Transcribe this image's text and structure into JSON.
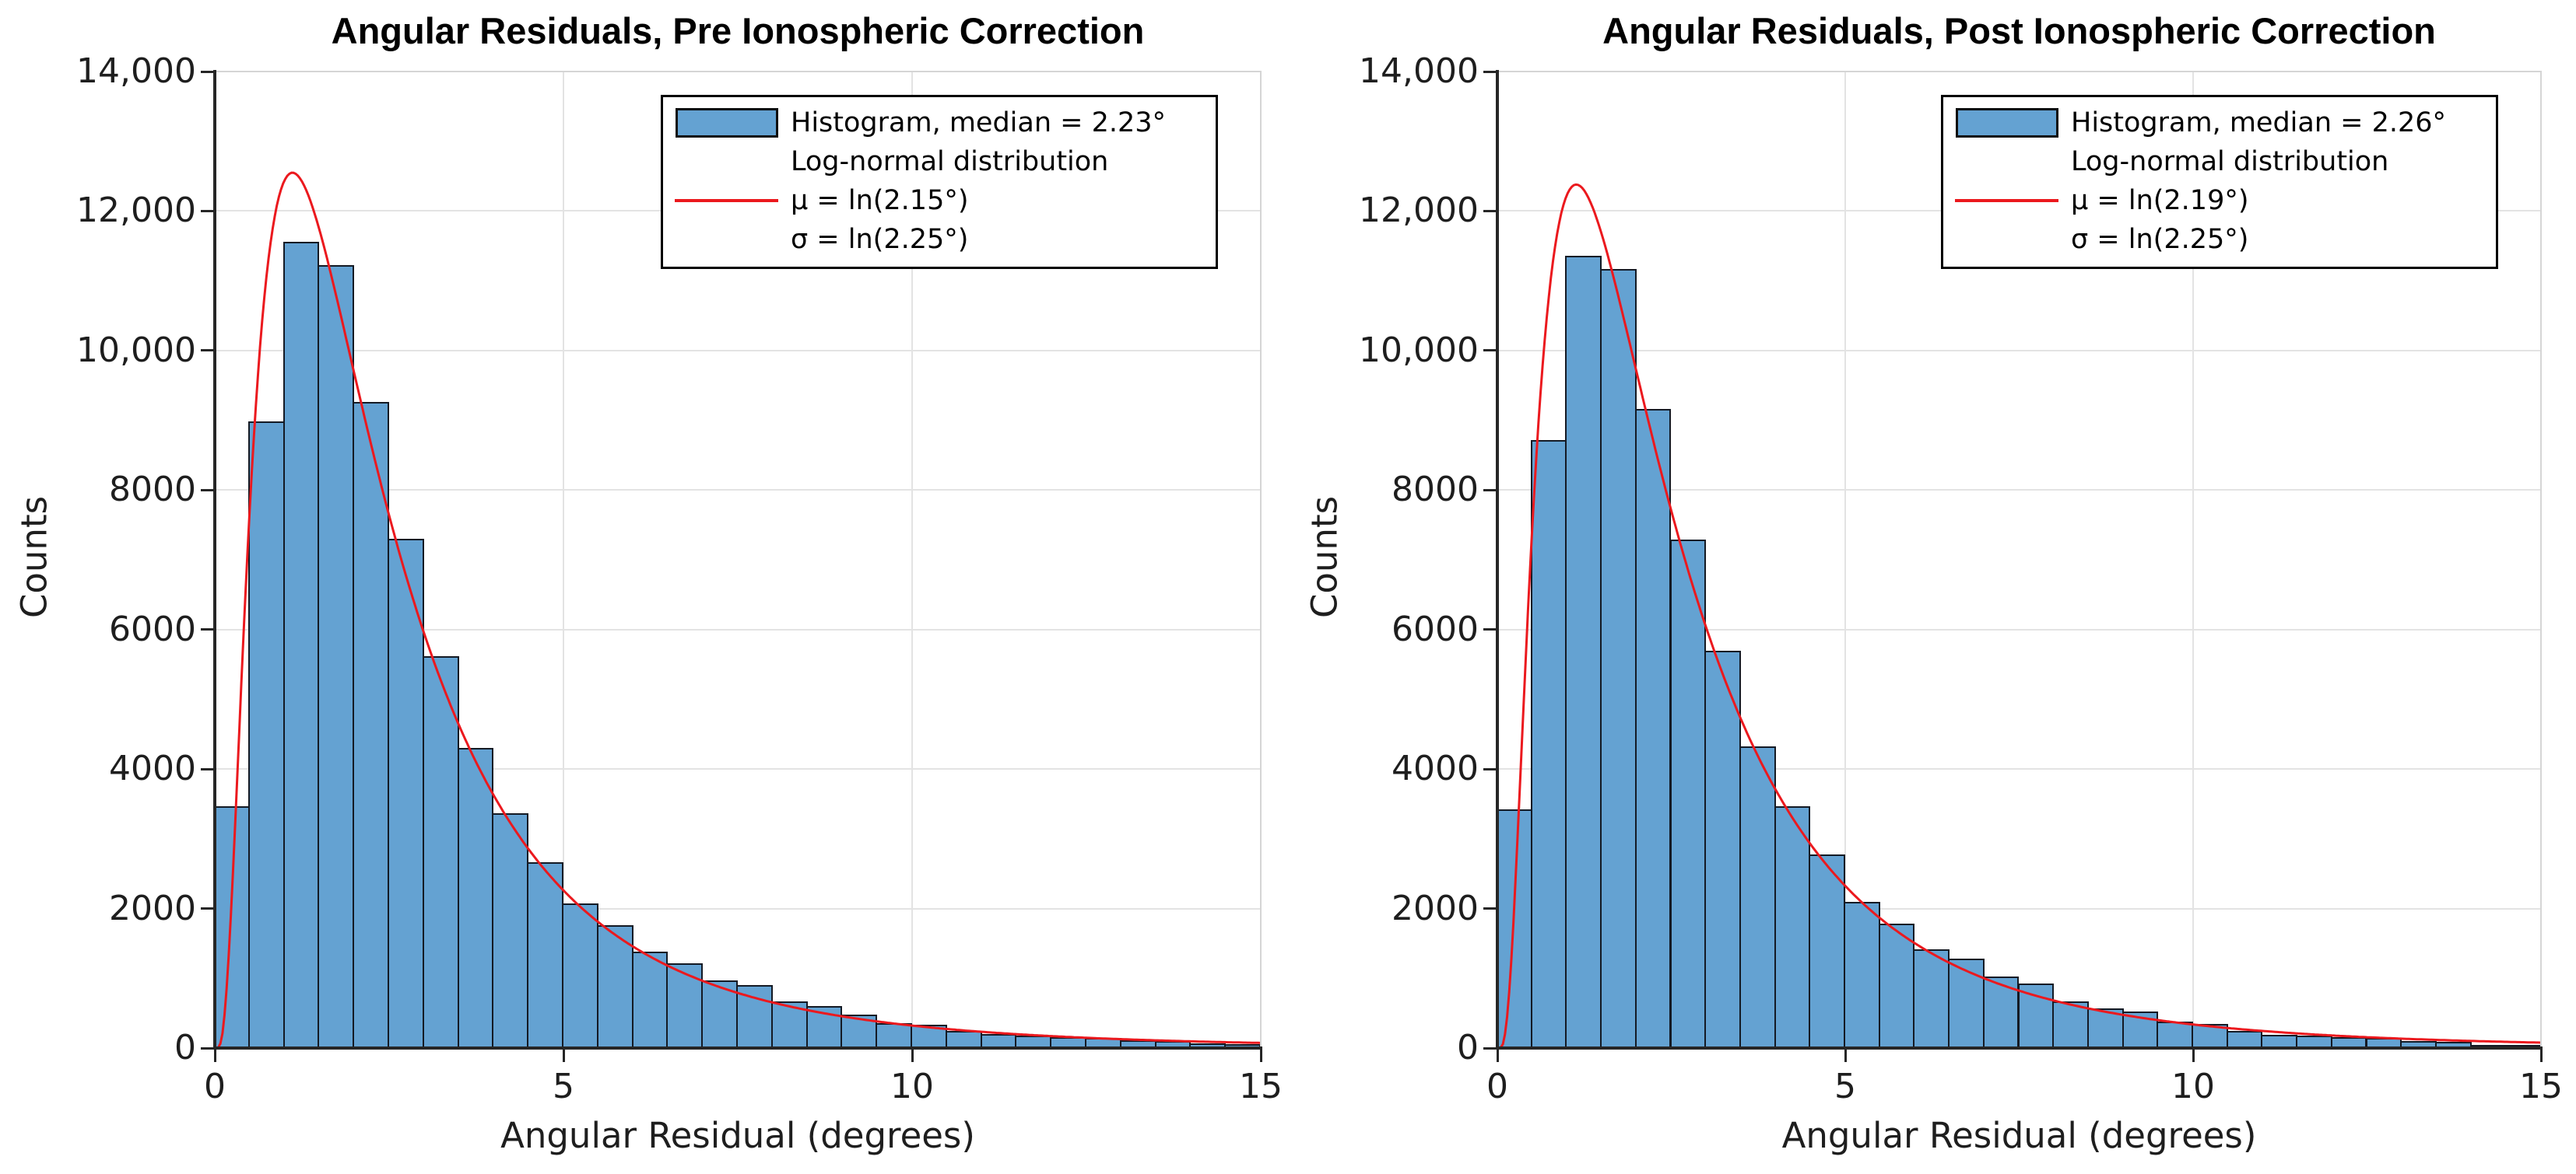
{
  "colors": {
    "bar_fill": "#64a2d2",
    "bar_edge": "#141a24",
    "curve": "#eb191e",
    "grid": "#e3e3e3",
    "spine_dark": "#262626",
    "spine_light": "#d5d5d5",
    "text": "#1a1a1a",
    "legend_border": "#000000",
    "background": "#ffffff"
  },
  "chart_data": [
    {
      "type": "bar",
      "subtype": "histogram-with-lognormal-fit",
      "title": "Angular Residuals, Pre Ionospheric Correction",
      "xlabel": "Angular Residual (degrees)",
      "ylabel": "Counts",
      "xlim": [
        0,
        15
      ],
      "ylim": [
        0,
        14000
      ],
      "grid": true,
      "legend_position": "upper right",
      "xticks": {
        "values": [
          0,
          5,
          10,
          15
        ],
        "labels": [
          "0",
          "5",
          "10",
          "15"
        ]
      },
      "yticks": {
        "values": [
          0,
          2000,
          4000,
          6000,
          8000,
          10000,
          12000,
          14000
        ],
        "labels": [
          "0",
          "2000",
          "4000",
          "6000",
          "8000",
          "10,000",
          "12,000",
          "14,000"
        ]
      },
      "bins": {
        "start": 0,
        "width": 0.5,
        "count": 30
      },
      "counts": [
        3470,
        8980,
        11560,
        11220,
        9260,
        7300,
        5620,
        4300,
        3370,
        2660,
        2070,
        1760,
        1380,
        1220,
        970,
        900,
        670,
        600,
        480,
        360,
        330,
        250,
        200,
        180,
        155,
        140,
        110,
        100,
        70,
        60
      ],
      "median_deg": 2.23,
      "lognormal": {
        "mu_deg": 2.15,
        "sigma_deg": 2.25,
        "curve_peak": 12550
      },
      "legend": [
        "Histogram, median = 2.23°",
        "Log-normal distribution",
        "μ = ln(2.15°)",
        "σ = ln(2.25°)"
      ]
    },
    {
      "type": "bar",
      "subtype": "histogram-with-lognormal-fit",
      "title": "Angular Residuals, Post Ionospheric Correction",
      "xlabel": "Angular Residual (degrees)",
      "ylabel": "Counts",
      "xlim": [
        0,
        15
      ],
      "ylim": [
        0,
        14000
      ],
      "grid": true,
      "legend_position": "upper right",
      "xticks": {
        "values": [
          0,
          5,
          10,
          15
        ],
        "labels": [
          "0",
          "5",
          "10",
          "15"
        ]
      },
      "yticks": {
        "values": [
          0,
          2000,
          4000,
          6000,
          8000,
          10000,
          12000,
          14000
        ],
        "labels": [
          "0",
          "2000",
          "4000",
          "6000",
          "8000",
          "10,000",
          "12,000",
          "14,000"
        ]
      },
      "bins": {
        "start": 0,
        "width": 0.5,
        "count": 30
      },
      "counts": [
        3420,
        8720,
        11360,
        11170,
        9160,
        7290,
        5700,
        4320,
        3470,
        2770,
        2100,
        1780,
        1420,
        1280,
        1030,
        920,
        670,
        570,
        520,
        380,
        340,
        250,
        195,
        175,
        155,
        140,
        95,
        85,
        50,
        45
      ],
      "median_deg": 2.26,
      "lognormal": {
        "mu_deg": 2.19,
        "sigma_deg": 2.25,
        "curve_peak": 12380
      },
      "legend": [
        "Histogram, median = 2.26°",
        "Log-normal distribution",
        "μ = ln(2.19°)",
        "σ = ln(2.25°)"
      ]
    }
  ]
}
